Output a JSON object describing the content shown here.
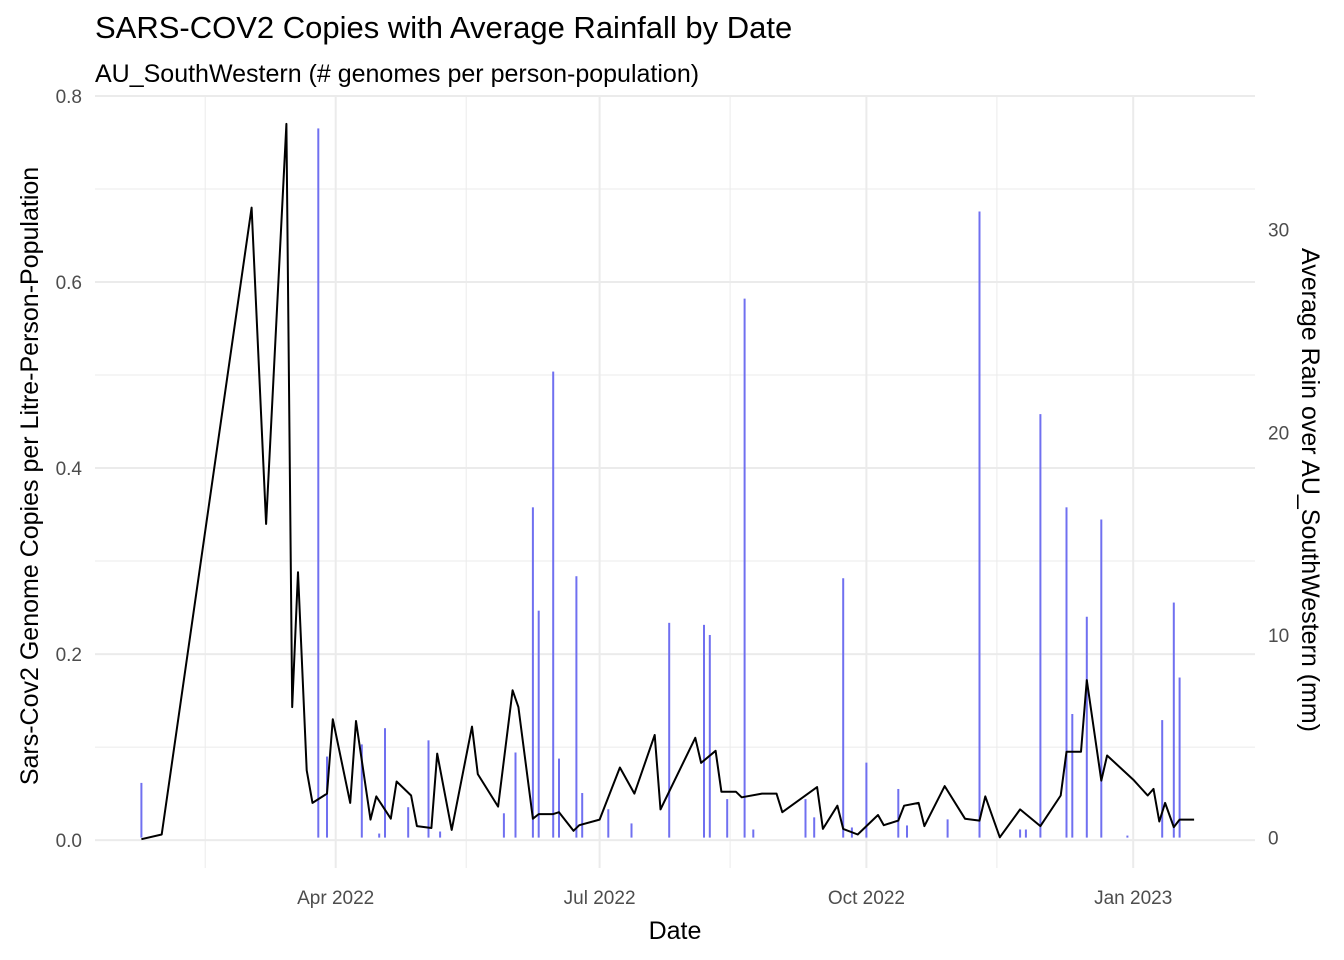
{
  "chart_data": {
    "type": "line+bar",
    "title": "SARS-COV2 Copies with Average Rainfall by Date",
    "subtitle": "AU_SouthWestern (# genomes per person-population)",
    "xlabel": "Date",
    "ylabel": "Sars-Cov2 Genome Copies per Litre-Person-Population",
    "y2label": "Average Rain over AU_SouthWestern (mm)",
    "xlim": [
      "2022-01-08",
      "2023-02-12"
    ],
    "ylim": [
      -0.03,
      0.8
    ],
    "y2lim": [
      -1.5,
      36.6
    ],
    "x_ticks": [
      {
        "date": "2022-04-01",
        "label": "Apr 2022"
      },
      {
        "date": "2022-07-01",
        "label": "Jul 2022"
      },
      {
        "date": "2022-10-01",
        "label": "Oct 2022"
      },
      {
        "date": "2023-01-01",
        "label": "Jan 2023"
      }
    ],
    "x_minor_ticks": [
      "2022-02-15",
      "2022-05-16",
      "2022-08-15",
      "2022-11-15"
    ],
    "y_ticks": [
      0.0,
      0.2,
      0.4,
      0.6,
      0.8
    ],
    "y_tick_labels": [
      "0.0",
      "0.2",
      "0.4",
      "0.6",
      "0.8"
    ],
    "y2_ticks": [
      0,
      10,
      20,
      30
    ],
    "y2_tick_labels": [
      "0",
      "10",
      "20",
      "30"
    ],
    "grid": true,
    "colors": {
      "line": "#000000",
      "bars": "#7070f0",
      "grid": "#ebebeb"
    },
    "series": [
      {
        "type": "line",
        "axis": "left",
        "points": [
          [
            "2022-01-24",
            0.001
          ],
          [
            "2022-01-31",
            0.006
          ],
          [
            "2022-03-03",
            0.68
          ],
          [
            "2022-03-08",
            0.34
          ],
          [
            "2022-03-15",
            0.77
          ],
          [
            "2022-03-17",
            0.143
          ],
          [
            "2022-03-19",
            0.288
          ],
          [
            "2022-03-22",
            0.075
          ],
          [
            "2022-03-24",
            0.04
          ],
          [
            "2022-03-29",
            0.05
          ],
          [
            "2022-03-31",
            0.13
          ],
          [
            "2022-04-06",
            0.04
          ],
          [
            "2022-04-08",
            0.128
          ],
          [
            "2022-04-13",
            0.022
          ],
          [
            "2022-04-15",
            0.047
          ],
          [
            "2022-04-20",
            0.023
          ],
          [
            "2022-04-22",
            0.063
          ],
          [
            "2022-04-27",
            0.048
          ],
          [
            "2022-04-29",
            0.015
          ],
          [
            "2022-05-04",
            0.013
          ],
          [
            "2022-05-06",
            0.093
          ],
          [
            "2022-05-11",
            0.011
          ],
          [
            "2022-05-18",
            0.122
          ],
          [
            "2022-05-20",
            0.071
          ],
          [
            "2022-05-27",
            0.036
          ],
          [
            "2022-06-01",
            0.161
          ],
          [
            "2022-06-03",
            0.143
          ],
          [
            "2022-06-08",
            0.023
          ],
          [
            "2022-06-10",
            0.028
          ],
          [
            "2022-06-15",
            0.028
          ],
          [
            "2022-06-17",
            0.03
          ],
          [
            "2022-06-22",
            0.01
          ],
          [
            "2022-06-24",
            0.016
          ],
          [
            "2022-07-01",
            0.022
          ],
          [
            "2022-07-08",
            0.078
          ],
          [
            "2022-07-13",
            0.05
          ],
          [
            "2022-07-20",
            0.113
          ],
          [
            "2022-07-22",
            0.033
          ],
          [
            "2022-08-03",
            0.11
          ],
          [
            "2022-08-05",
            0.083
          ],
          [
            "2022-08-10",
            0.096
          ],
          [
            "2022-08-12",
            0.052
          ],
          [
            "2022-08-17",
            0.052
          ],
          [
            "2022-08-19",
            0.046
          ],
          [
            "2022-08-26",
            0.05
          ],
          [
            "2022-08-31",
            0.05
          ],
          [
            "2022-09-02",
            0.03
          ],
          [
            "2022-09-14",
            0.057
          ],
          [
            "2022-09-16",
            0.012
          ],
          [
            "2022-09-21",
            0.037
          ],
          [
            "2022-09-23",
            0.012
          ],
          [
            "2022-09-28",
            0.006
          ],
          [
            "2022-10-05",
            0.027
          ],
          [
            "2022-10-07",
            0.016
          ],
          [
            "2022-10-12",
            0.021
          ],
          [
            "2022-10-14",
            0.037
          ],
          [
            "2022-10-19",
            0.04
          ],
          [
            "2022-10-21",
            0.015
          ],
          [
            "2022-10-28",
            0.058
          ],
          [
            "2022-11-04",
            0.023
          ],
          [
            "2022-11-09",
            0.021
          ],
          [
            "2022-11-11",
            0.047
          ],
          [
            "2022-11-16",
            0.003
          ],
          [
            "2022-11-23",
            0.033
          ],
          [
            "2022-11-30",
            0.015
          ],
          [
            "2022-12-07",
            0.048
          ],
          [
            "2022-12-09",
            0.095
          ],
          [
            "2022-12-14",
            0.095
          ],
          [
            "2022-12-16",
            0.172
          ],
          [
            "2022-12-21",
            0.064
          ],
          [
            "2022-12-23",
            0.091
          ],
          [
            "2023-01-01",
            0.065
          ],
          [
            "2023-01-06",
            0.048
          ],
          [
            "2023-01-08",
            0.055
          ],
          [
            "2023-01-10",
            0.02
          ],
          [
            "2023-01-12",
            0.04
          ],
          [
            "2023-01-15",
            0.014
          ],
          [
            "2023-01-17",
            0.022
          ],
          [
            "2023-01-22",
            0.022
          ]
        ]
      },
      {
        "type": "bar",
        "axis": "right",
        "points": [
          [
            "2022-01-24",
            2.7
          ],
          [
            "2022-03-26",
            35.0
          ],
          [
            "2022-03-29",
            4.0
          ],
          [
            "2022-04-10",
            4.6
          ],
          [
            "2022-04-16",
            0.2
          ],
          [
            "2022-04-18",
            5.4
          ],
          [
            "2022-04-26",
            1.5
          ],
          [
            "2022-05-03",
            4.8
          ],
          [
            "2022-05-07",
            0.3
          ],
          [
            "2022-05-29",
            1.2
          ],
          [
            "2022-06-02",
            4.2
          ],
          [
            "2022-06-08",
            16.3
          ],
          [
            "2022-06-10",
            11.2
          ],
          [
            "2022-06-15",
            23.0
          ],
          [
            "2022-06-17",
            3.9
          ],
          [
            "2022-06-23",
            12.9
          ],
          [
            "2022-06-25",
            2.2
          ],
          [
            "2022-07-04",
            1.4
          ],
          [
            "2022-07-12",
            0.7
          ],
          [
            "2022-07-25",
            10.6
          ],
          [
            "2022-08-06",
            10.5
          ],
          [
            "2022-08-08",
            10.0
          ],
          [
            "2022-08-14",
            1.9
          ],
          [
            "2022-08-20",
            26.6
          ],
          [
            "2022-08-23",
            0.4
          ],
          [
            "2022-09-10",
            1.9
          ],
          [
            "2022-09-13",
            1.0
          ],
          [
            "2022-09-23",
            12.8
          ],
          [
            "2022-09-26",
            0.5
          ],
          [
            "2022-10-01",
            3.7
          ],
          [
            "2022-10-12",
            2.4
          ],
          [
            "2022-10-15",
            0.6
          ],
          [
            "2022-10-29",
            0.9
          ],
          [
            "2022-11-09",
            30.9
          ],
          [
            "2022-11-23",
            0.4
          ],
          [
            "2022-11-25",
            0.4
          ],
          [
            "2022-11-30",
            20.9
          ],
          [
            "2022-12-09",
            16.3
          ],
          [
            "2022-12-11",
            6.1
          ],
          [
            "2022-12-16",
            10.9
          ],
          [
            "2022-12-21",
            15.7
          ],
          [
            "2022-12-30",
            0.1
          ],
          [
            "2023-01-11",
            5.8
          ],
          [
            "2023-01-15",
            11.6
          ],
          [
            "2023-01-17",
            7.9
          ]
        ]
      }
    ]
  }
}
